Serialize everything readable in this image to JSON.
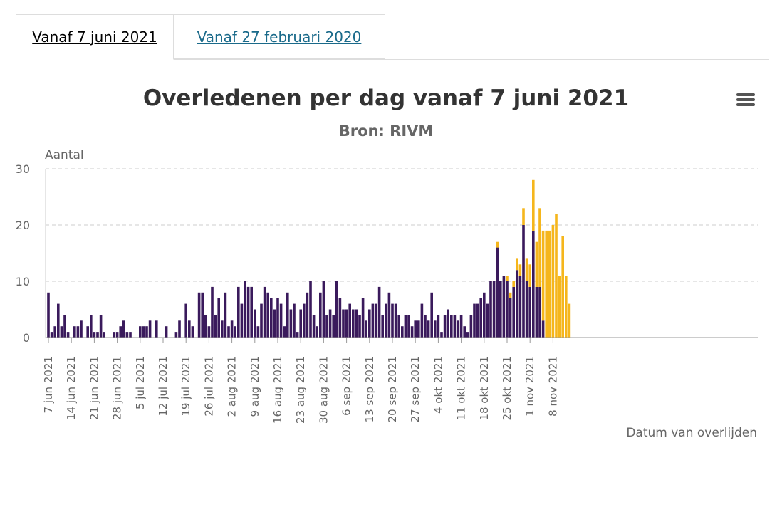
{
  "tabs": [
    {
      "label": "Vanaf 7 juni 2021",
      "active": true
    },
    {
      "label": "Vanaf 27 februari 2020",
      "active": false
    }
  ],
  "menu_icon": "hamburger-menu-icon",
  "colors": {
    "reported": "#3a1a5c",
    "recent": "#f5b61c",
    "grid": "#cccccc",
    "axis": "#999999"
  },
  "chart_data": {
    "type": "bar",
    "title": "Overledenen per dag vanaf 7 juni 2021",
    "subtitle": "Bron: RIVM",
    "ylabel": "Aantal",
    "xlabel": "Datum van overlijden",
    "ylim": [
      0,
      30
    ],
    "yticks": [
      0,
      10,
      20,
      30
    ],
    "grid": true,
    "stacked": true,
    "start_date": "2021-06-07",
    "xtick_labels": [
      "7 jun 2021",
      "14 jun 2021",
      "21 jun 2021",
      "28 jun 2021",
      "5 jul 2021",
      "12 jul 2021",
      "19 jul 2021",
      "26 jul 2021",
      "2 aug 2021",
      "9 aug 2021",
      "16 aug 2021",
      "23 aug 2021",
      "30 aug 2021",
      "6 sep 2021",
      "13 sep 2021",
      "20 sep 2021",
      "27 sep 2021",
      "4 okt 2021",
      "11 okt 2021",
      "18 okt 2021",
      "25 okt 2021",
      "1 nov 2021",
      "8 nov 2021"
    ],
    "series": [
      {
        "values": [
          8,
          1,
          2,
          6,
          2,
          4,
          1,
          0,
          2,
          2,
          3,
          0,
          2,
          4,
          1,
          1,
          4,
          1,
          0,
          0,
          1,
          1,
          2,
          3,
          1,
          1,
          0,
          0,
          2,
          2,
          2,
          3,
          0,
          3,
          0,
          0,
          2,
          0,
          0,
          1,
          3,
          0,
          6,
          3,
          2,
          0,
          8,
          8,
          4,
          2,
          9,
          4,
          7,
          3,
          8,
          2,
          3,
          2,
          9,
          6,
          10,
          9,
          9,
          5,
          2,
          6,
          9,
          8,
          7,
          5,
          7,
          6,
          2,
          8,
          5,
          6,
          1,
          5,
          6,
          8,
          10,
          4,
          2,
          8,
          10,
          4,
          5,
          4,
          10,
          7,
          5,
          5,
          6,
          5,
          5,
          4,
          7,
          3,
          5,
          6,
          6,
          9,
          4,
          6,
          8,
          6,
          6,
          4,
          2,
          4,
          4,
          2,
          3,
          3,
          6,
          4,
          3,
          8,
          3,
          4,
          1,
          4,
          5,
          4,
          4,
          3,
          4,
          2,
          1,
          4,
          6,
          6,
          7,
          8,
          6,
          10,
          10,
          16,
          10,
          11,
          10,
          7,
          9,
          12,
          11,
          20,
          10,
          9,
          19,
          9,
          9,
          3,
          0,
          0,
          0,
          0,
          0,
          0,
          0,
          0,
          0
        ]
      },
      {
        "values": [
          0,
          0,
          0,
          0,
          0,
          0,
          0,
          0,
          0,
          0,
          0,
          0,
          0,
          0,
          0,
          0,
          0,
          0,
          0,
          0,
          0,
          0,
          0,
          0,
          0,
          0,
          0,
          0,
          0,
          0,
          0,
          0,
          0,
          0,
          0,
          0,
          0,
          0,
          0,
          0,
          0,
          0,
          0,
          0,
          0,
          0,
          0,
          0,
          0,
          0,
          0,
          0,
          0,
          0,
          0,
          0,
          0,
          0,
          0,
          0,
          0,
          0,
          0,
          0,
          0,
          0,
          0,
          0,
          0,
          0,
          0,
          0,
          0,
          0,
          0,
          0,
          0,
          0,
          0,
          0,
          0,
          0,
          0,
          0,
          0,
          0,
          0,
          0,
          0,
          0,
          0,
          0,
          0,
          0,
          0,
          0,
          0,
          0,
          0,
          0,
          0,
          0,
          0,
          0,
          0,
          0,
          0,
          0,
          0,
          0,
          0,
          0,
          0,
          0,
          0,
          0,
          0,
          0,
          0,
          0,
          0,
          0,
          0,
          0,
          0,
          0,
          0,
          0,
          0,
          0,
          0,
          0,
          0,
          0,
          0,
          0,
          0,
          1,
          0,
          0,
          1,
          1,
          1,
          2,
          2,
          3,
          4,
          4,
          9,
          8,
          14,
          16,
          19,
          19,
          20,
          22,
          11,
          18,
          11,
          6
        ]
      }
    ]
  }
}
